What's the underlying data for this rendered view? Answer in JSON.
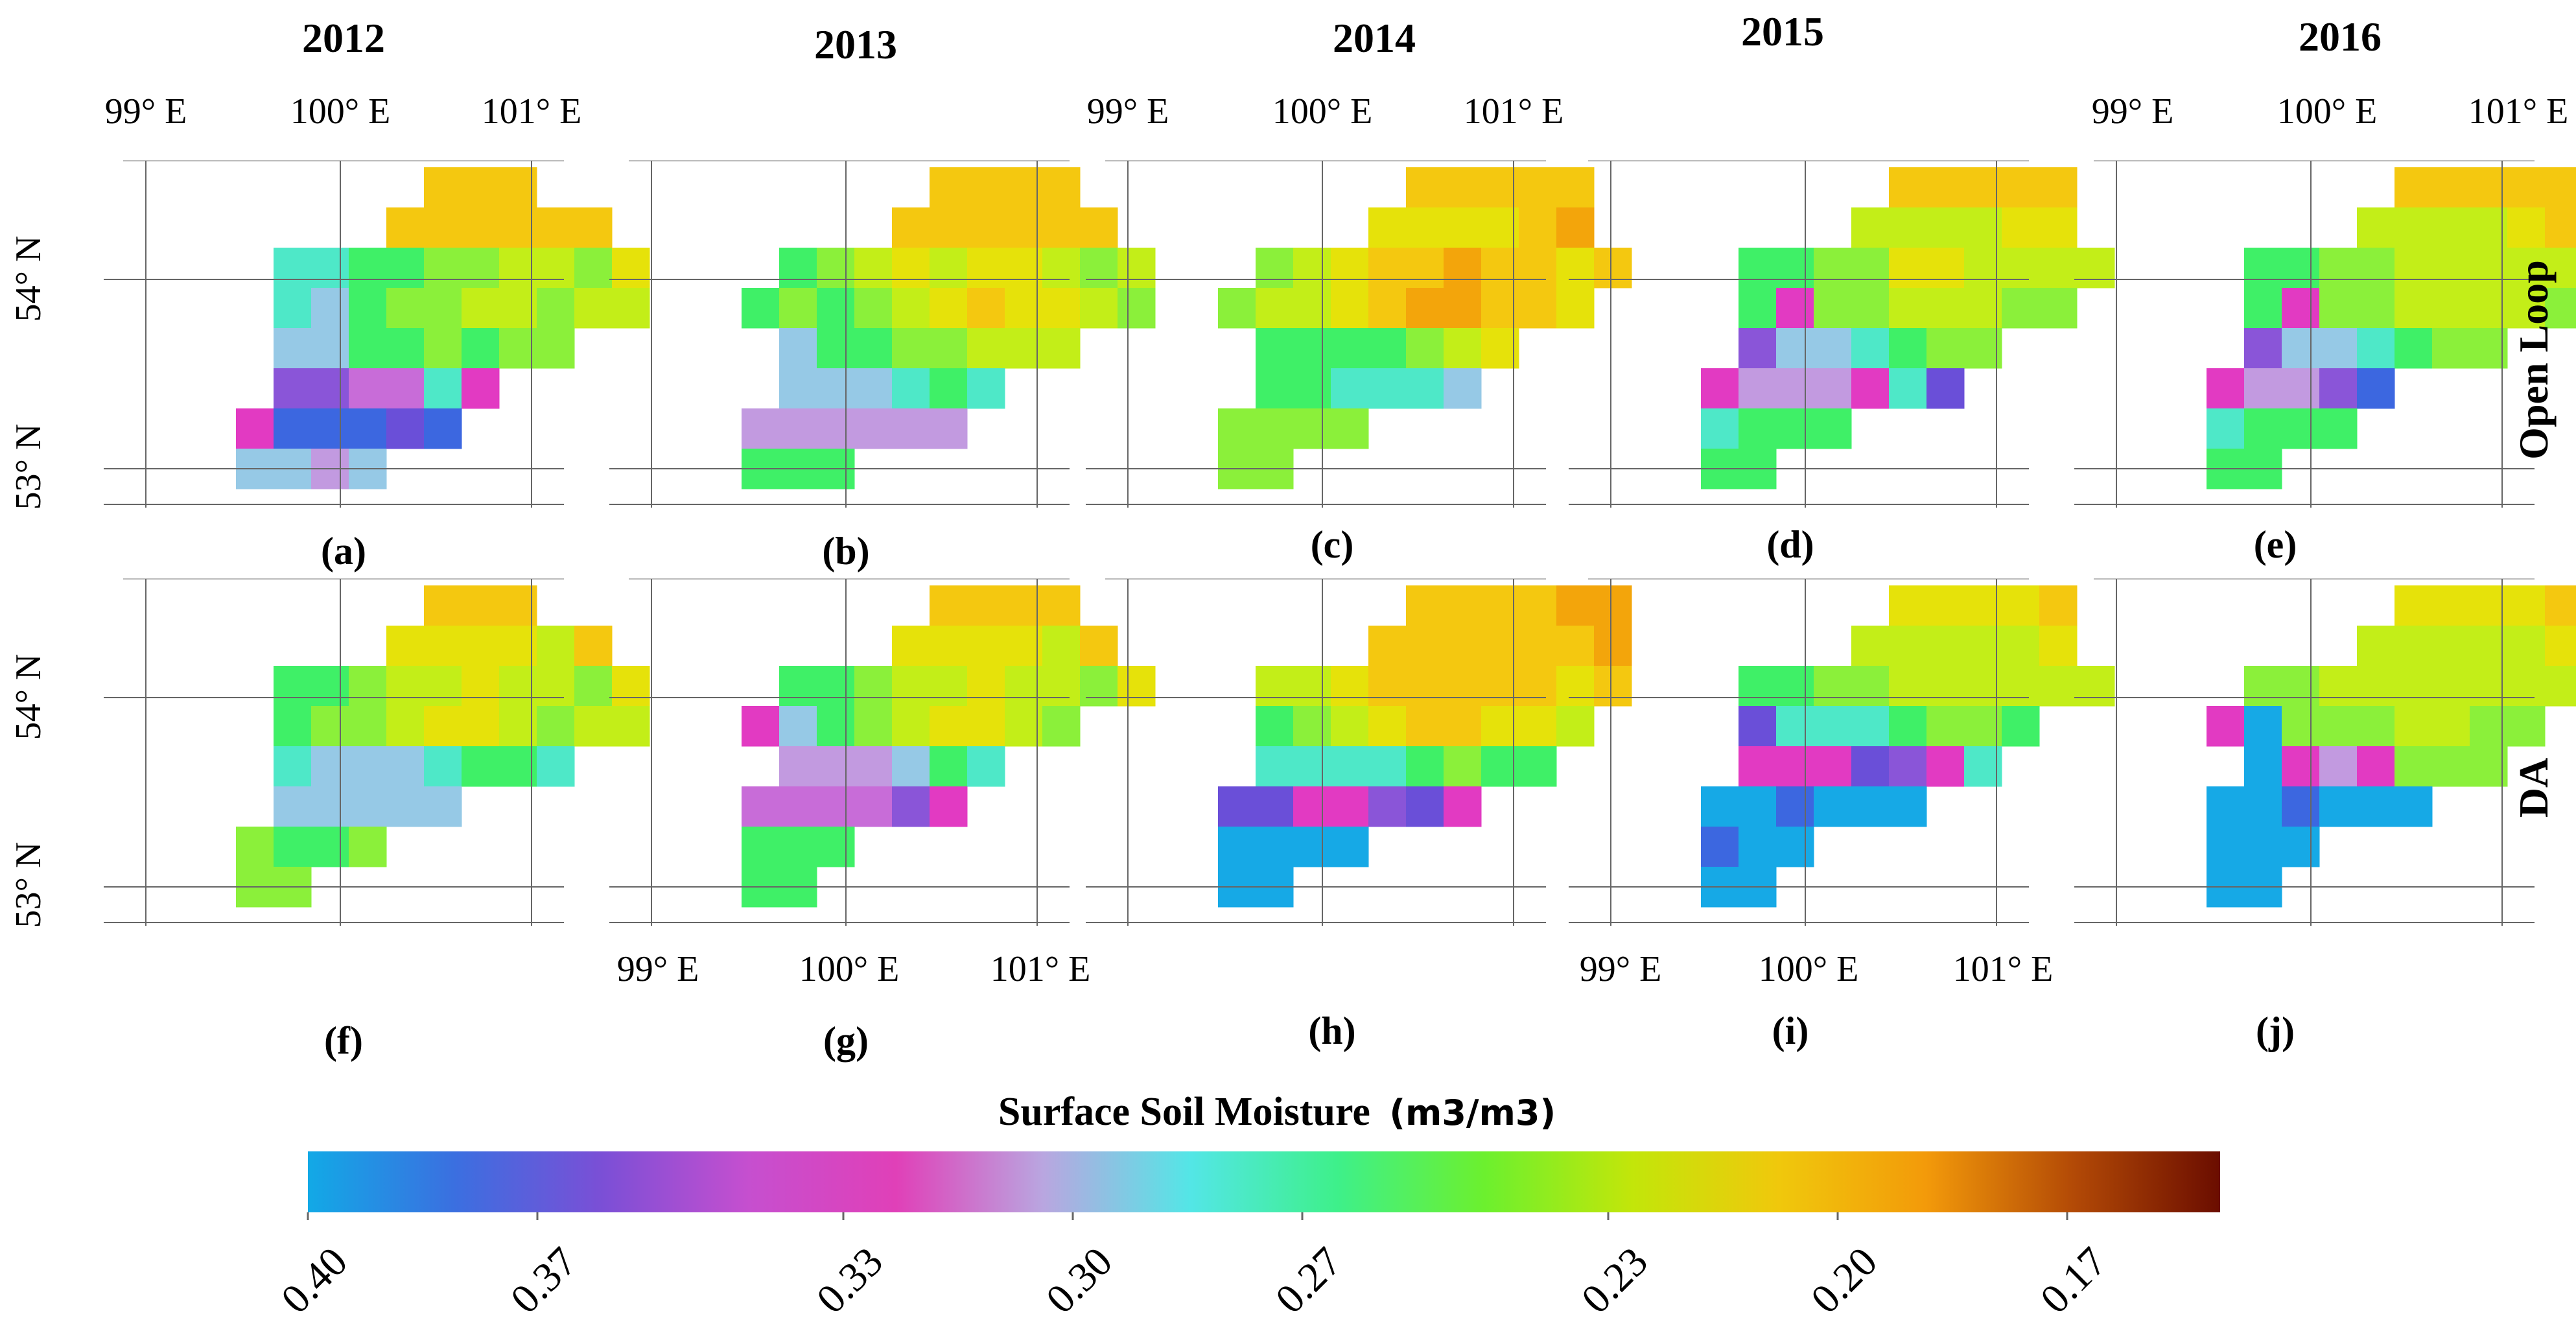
{
  "years": [
    "2012",
    "2013",
    "2014",
    "2015",
    "2016"
  ],
  "row_labels": [
    "Open Loop",
    "DA"
  ],
  "panel_labels": [
    "(a)",
    "(b)",
    "(c)",
    "(d)",
    "(e)",
    "(f)",
    "(g)",
    "(h)",
    "(i)",
    "(j)"
  ],
  "lon_labels": [
    "99° E",
    "100° E",
    "101° E"
  ],
  "lat_labels": [
    "54° N",
    "53° N"
  ],
  "colorbar": {
    "title": "Surface Soil Moisture",
    "unit": "(m3/m3)",
    "tick_labels": [
      "0.40",
      "0.37",
      "0.33",
      "0.30",
      "0.27",
      "0.23",
      "0.20",
      "0.17"
    ],
    "tick_values": [
      0.4,
      0.37,
      0.33,
      0.3,
      0.27,
      0.23,
      0.2,
      0.17
    ],
    "range": [
      0.4,
      0.15
    ],
    "color_stops": [
      "#12a9e6",
      "#3b6fe0",
      "#7b4fd6",
      "#c64fcf",
      "#e040b8",
      "#b9a6e0",
      "#53e6e6",
      "#3ef08a",
      "#6cf02e",
      "#c2e60a",
      "#f0c80c",
      "#f39a0a",
      "#b34a06",
      "#6b0d00"
    ]
  },
  "open_loop": [
    [
      [
        0,
        0,
        0,
        0,
        0,
        0,
        0,
        2,
        2,
        2,
        0,
        0,
        0,
        0
      ],
      [
        0,
        0,
        0,
        0,
        0,
        0,
        2,
        2,
        2,
        2,
        2,
        2,
        0,
        0
      ],
      [
        0,
        0,
        0,
        7,
        7,
        6,
        6,
        5,
        5,
        4,
        4,
        5,
        3,
        0
      ],
      [
        0,
        0,
        0,
        7,
        8,
        6,
        5,
        5,
        4,
        4,
        5,
        4,
        4,
        0
      ],
      [
        0,
        0,
        0,
        8,
        8,
        6,
        6,
        5,
        6,
        5,
        5,
        0,
        0,
        0
      ],
      [
        0,
        0,
        0,
        11,
        11,
        10,
        10,
        7,
        12,
        0,
        0,
        0,
        0,
        0
      ],
      [
        0,
        0,
        12,
        14,
        14,
        14,
        13,
        14,
        0,
        0,
        0,
        0,
        0,
        0
      ],
      [
        0,
        0,
        8,
        8,
        9,
        8,
        0,
        0,
        0,
        0,
        0,
        0,
        0,
        0
      ]
    ],
    [
      [
        0,
        0,
        0,
        0,
        0,
        0,
        0,
        2,
        2,
        2,
        2,
        0,
        0,
        0
      ],
      [
        0,
        0,
        0,
        0,
        0,
        0,
        2,
        2,
        2,
        2,
        2,
        2,
        0,
        0
      ],
      [
        0,
        0,
        0,
        6,
        5,
        4,
        3,
        4,
        3,
        3,
        4,
        5,
        4,
        0
      ],
      [
        0,
        0,
        6,
        5,
        6,
        5,
        4,
        3,
        2,
        3,
        3,
        4,
        5,
        0
      ],
      [
        0,
        0,
        0,
        8,
        6,
        6,
        5,
        5,
        4,
        4,
        4,
        0,
        0,
        0
      ],
      [
        0,
        0,
        0,
        8,
        8,
        8,
        7,
        6,
        7,
        0,
        0,
        0,
        0,
        0
      ],
      [
        0,
        0,
        9,
        9,
        9,
        9,
        9,
        9,
        0,
        0,
        0,
        0,
        0,
        0
      ],
      [
        0,
        0,
        6,
        6,
        6,
        0,
        0,
        0,
        0,
        0,
        0,
        0,
        0,
        0
      ]
    ],
    [
      [
        0,
        0,
        0,
        0,
        0,
        0,
        0,
        2,
        2,
        2,
        2,
        2,
        0,
        0
      ],
      [
        0,
        0,
        0,
        0,
        0,
        0,
        3,
        3,
        3,
        3,
        2,
        1,
        0,
        0
      ],
      [
        0,
        0,
        0,
        5,
        4,
        3,
        2,
        2,
        1,
        2,
        2,
        3,
        2,
        0
      ],
      [
        0,
        0,
        5,
        4,
        4,
        3,
        2,
        1,
        1,
        2,
        2,
        3,
        0,
        0
      ],
      [
        0,
        0,
        0,
        6,
        6,
        6,
        6,
        5,
        4,
        3,
        0,
        0,
        0,
        0
      ],
      [
        0,
        0,
        0,
        6,
        6,
        7,
        7,
        7,
        8,
        0,
        0,
        0,
        0,
        0
      ],
      [
        0,
        0,
        5,
        5,
        5,
        5,
        0,
        0,
        0,
        0,
        0,
        0,
        0,
        0
      ],
      [
        0,
        0,
        5,
        5,
        0,
        0,
        0,
        0,
        0,
        0,
        0,
        0,
        0,
        0
      ]
    ],
    [
      [
        0,
        0,
        0,
        0,
        0,
        0,
        0,
        2,
        2,
        2,
        2,
        2,
        0,
        0
      ],
      [
        0,
        0,
        0,
        0,
        0,
        0,
        4,
        4,
        4,
        4,
        3,
        3,
        0,
        0
      ],
      [
        0,
        0,
        0,
        6,
        6,
        5,
        5,
        3,
        3,
        4,
        4,
        4,
        4,
        0
      ],
      [
        0,
        0,
        0,
        6,
        12,
        5,
        5,
        4,
        4,
        4,
        5,
        5,
        0,
        0
      ],
      [
        0,
        0,
        0,
        11,
        8,
        8,
        7,
        6,
        5,
        5,
        0,
        0,
        0,
        0
      ],
      [
        0,
        0,
        12,
        9,
        9,
        9,
        12,
        7,
        13,
        0,
        0,
        0,
        0,
        0
      ],
      [
        0,
        0,
        7,
        6,
        6,
        6,
        0,
        0,
        0,
        0,
        0,
        0,
        0,
        0
      ],
      [
        0,
        0,
        6,
        6,
        0,
        0,
        0,
        0,
        0,
        0,
        0,
        0,
        0,
        0
      ]
    ],
    [
      [
        0,
        0,
        0,
        0,
        0,
        0,
        0,
        2,
        2,
        2,
        2,
        2,
        0,
        0
      ],
      [
        0,
        0,
        0,
        0,
        0,
        0,
        4,
        4,
        4,
        4,
        3,
        2,
        0,
        0
      ],
      [
        0,
        0,
        0,
        6,
        6,
        5,
        5,
        4,
        4,
        4,
        4,
        4,
        3,
        0
      ],
      [
        0,
        0,
        0,
        6,
        12,
        5,
        5,
        4,
        4,
        4,
        4,
        5,
        0,
        0
      ],
      [
        0,
        0,
        0,
        11,
        8,
        8,
        7,
        6,
        5,
        5,
        0,
        0,
        0,
        0
      ],
      [
        0,
        0,
        12,
        9,
        9,
        11,
        14,
        0,
        0,
        0,
        0,
        0,
        0,
        0
      ],
      [
        0,
        0,
        7,
        6,
        6,
        6,
        0,
        0,
        0,
        0,
        0,
        0,
        0,
        0
      ],
      [
        0,
        0,
        6,
        6,
        0,
        0,
        0,
        0,
        0,
        0,
        0,
        0,
        0,
        0
      ]
    ]
  ],
  "da": [
    [
      [
        0,
        0,
        0,
        0,
        0,
        0,
        0,
        2,
        2,
        2,
        0,
        0,
        0,
        0
      ],
      [
        0,
        0,
        0,
        0,
        0,
        0,
        3,
        3,
        3,
        3,
        4,
        2,
        0,
        0
      ],
      [
        0,
        0,
        0,
        6,
        6,
        5,
        4,
        4,
        3,
        4,
        4,
        5,
        3,
        0
      ],
      [
        0,
        0,
        0,
        6,
        5,
        5,
        4,
        3,
        3,
        4,
        5,
        4,
        4,
        0
      ],
      [
        0,
        0,
        0,
        7,
        8,
        8,
        8,
        7,
        6,
        6,
        7,
        0,
        0,
        0
      ],
      [
        0,
        0,
        0,
        8,
        8,
        8,
        8,
        8,
        0,
        0,
        0,
        0,
        0,
        0
      ],
      [
        0,
        0,
        5,
        6,
        6,
        5,
        0,
        0,
        0,
        0,
        0,
        0,
        0,
        0
      ],
      [
        0,
        0,
        5,
        5,
        0,
        0,
        0,
        0,
        0,
        0,
        0,
        0,
        0,
        0
      ]
    ],
    [
      [
        0,
        0,
        0,
        0,
        0,
        0,
        0,
        2,
        2,
        2,
        2,
        0,
        0,
        0
      ],
      [
        0,
        0,
        0,
        0,
        0,
        0,
        3,
        3,
        3,
        3,
        4,
        2,
        0,
        0
      ],
      [
        0,
        0,
        0,
        6,
        6,
        5,
        4,
        4,
        3,
        4,
        4,
        5,
        3,
        0
      ],
      [
        0,
        0,
        12,
        8,
        6,
        5,
        4,
        3,
        3,
        4,
        5,
        0,
        0,
        0
      ],
      [
        0,
        0,
        0,
        9,
        9,
        9,
        8,
        6,
        7,
        0,
        0,
        0,
        0,
        0
      ],
      [
        0,
        0,
        10,
        10,
        10,
        10,
        11,
        12,
        0,
        0,
        0,
        0,
        0,
        0
      ],
      [
        0,
        0,
        6,
        6,
        6,
        0,
        0,
        0,
        0,
        0,
        0,
        0,
        0,
        0
      ],
      [
        0,
        0,
        6,
        6,
        0,
        0,
        0,
        0,
        0,
        0,
        0,
        0,
        0,
        0
      ]
    ],
    [
      [
        0,
        0,
        0,
        0,
        0,
        0,
        0,
        2,
        2,
        2,
        2,
        1,
        1,
        0
      ],
      [
        0,
        0,
        0,
        0,
        0,
        0,
        2,
        2,
        2,
        2,
        2,
        2,
        1,
        0
      ],
      [
        0,
        0,
        0,
        4,
        4,
        3,
        2,
        2,
        2,
        2,
        2,
        3,
        2,
        0
      ],
      [
        0,
        0,
        0,
        6,
        5,
        4,
        3,
        2,
        2,
        3,
        3,
        4,
        0,
        0
      ],
      [
        0,
        0,
        0,
        7,
        7,
        7,
        7,
        6,
        5,
        6,
        6,
        0,
        0,
        0
      ],
      [
        0,
        0,
        13,
        13,
        12,
        12,
        11,
        13,
        12,
        0,
        0,
        0,
        0,
        0
      ],
      [
        0,
        0,
        15,
        15,
        15,
        15,
        0,
        0,
        0,
        0,
        0,
        0,
        0,
        0
      ],
      [
        0,
        0,
        15,
        15,
        0,
        0,
        0,
        0,
        0,
        0,
        0,
        0,
        0,
        0
      ]
    ],
    [
      [
        0,
        0,
        0,
        0,
        0,
        0,
        0,
        3,
        3,
        3,
        3,
        2,
        0,
        0
      ],
      [
        0,
        0,
        0,
        0,
        0,
        0,
        4,
        4,
        4,
        4,
        4,
        3,
        0,
        0
      ],
      [
        0,
        0,
        0,
        6,
        6,
        5,
        5,
        4,
        4,
        4,
        4,
        4,
        4,
        0
      ],
      [
        0,
        0,
        0,
        13,
        7,
        7,
        7,
        6,
        5,
        5,
        6,
        0,
        0,
        0
      ],
      [
        0,
        0,
        0,
        12,
        12,
        12,
        13,
        11,
        12,
        7,
        0,
        0,
        0,
        0
      ],
      [
        0,
        0,
        15,
        15,
        14,
        15,
        15,
        15,
        0,
        0,
        0,
        0,
        0,
        0
      ],
      [
        0,
        0,
        14,
        15,
        15,
        0,
        0,
        0,
        0,
        0,
        0,
        0,
        0,
        0
      ],
      [
        0,
        0,
        15,
        15,
        0,
        0,
        0,
        0,
        0,
        0,
        0,
        0,
        0,
        0
      ]
    ],
    [
      [
        0,
        0,
        0,
        0,
        0,
        0,
        0,
        3,
        3,
        3,
        3,
        2,
        0,
        0
      ],
      [
        0,
        0,
        0,
        0,
        0,
        0,
        4,
        4,
        4,
        4,
        4,
        3,
        0,
        0
      ],
      [
        0,
        0,
        0,
        5,
        5,
        4,
        4,
        4,
        4,
        4,
        4,
        4,
        4,
        0
      ],
      [
        0,
        0,
        12,
        15,
        5,
        5,
        5,
        4,
        4,
        5,
        5,
        0,
        0,
        0
      ],
      [
        0,
        0,
        0,
        15,
        12,
        9,
        12,
        5,
        5,
        5,
        0,
        0,
        0,
        0
      ],
      [
        0,
        0,
        15,
        15,
        14,
        15,
        15,
        15,
        0,
        0,
        0,
        0,
        0,
        0
      ],
      [
        0,
        0,
        15,
        15,
        15,
        0,
        0,
        0,
        0,
        0,
        0,
        0,
        0,
        0
      ],
      [
        0,
        0,
        15,
        15,
        0,
        0,
        0,
        0,
        0,
        0,
        0,
        0,
        0,
        0
      ]
    ]
  ],
  "cell_palette": [
    "#ffffff",
    "#f3a50b",
    "#f4c810",
    "#e6e20a",
    "#c3ee18",
    "#8bf03a",
    "#3ff067",
    "#4ee8c8",
    "#96c9e6",
    "#c29ae0",
    "#c86cd8",
    "#8a55d8",
    "#e23ac2",
    "#6a4fd8",
    "#3c67e0",
    "#16a9e6"
  ]
}
